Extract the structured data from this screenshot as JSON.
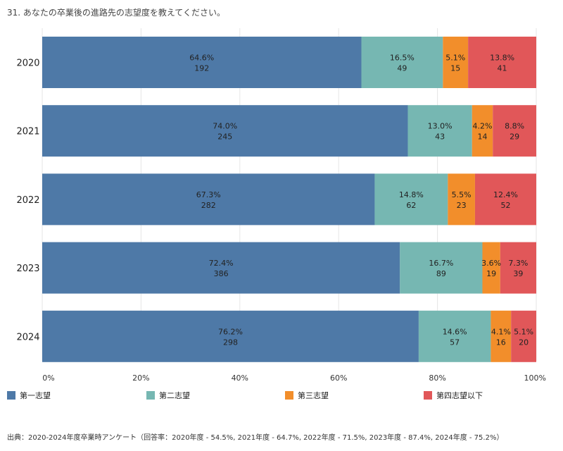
{
  "chart_data": {
    "type": "bar",
    "orientation": "horizontal",
    "stacked": true,
    "title": "31. あなたの卒業後の進路先の志望度を教えてください。",
    "source": "出典：2020-2024年度卒業時アンケート（回答率：2020年度 - 54.5%, 2021年度 - 64.7%, 2022年度 - 71.5%, 2023年度 - 87.4%, 2024年度 - 75.2%）",
    "categories": [
      "2020",
      "2021",
      "2022",
      "2023",
      "2024"
    ],
    "xlim": [
      0,
      100
    ],
    "xticks": [
      "0%",
      "20%",
      "40%",
      "60%",
      "80%",
      "100%"
    ],
    "grid": true,
    "legend_position": "bottom",
    "series": [
      {
        "name": "第一志望",
        "color": "#4e79a7",
        "values": [
          64.6,
          74.0,
          67.3,
          72.4,
          76.2
        ],
        "labels": [
          "64.6%",
          "74.0%",
          "67.3%",
          "72.4%",
          "76.2%"
        ],
        "counts": [
          "192",
          "245",
          "282",
          "386",
          "298"
        ]
      },
      {
        "name": "第二志望",
        "color": "#76b7b2",
        "values": [
          16.5,
          13.0,
          14.8,
          16.7,
          14.6
        ],
        "labels": [
          "16.5%",
          "13.0%",
          "14.8%",
          "16.7%",
          "14.6%"
        ],
        "counts": [
          "49",
          "43",
          "62",
          "89",
          "57"
        ]
      },
      {
        "name": "第三志望",
        "color": "#f28e2b",
        "values": [
          5.1,
          4.2,
          5.5,
          3.6,
          4.1
        ],
        "labels": [
          "5.1%",
          "4.2%",
          "5.5%",
          "3.6%",
          "4.1%"
        ],
        "counts": [
          "15",
          "14",
          "23",
          "19",
          "16"
        ]
      },
      {
        "name": "第四志望以下",
        "color": "#e15759",
        "values": [
          13.8,
          8.8,
          12.4,
          7.3,
          5.1
        ],
        "labels": [
          "13.8%",
          "8.8%",
          "12.4%",
          "7.3%",
          "5.1%"
        ],
        "counts": [
          "41",
          "29",
          "52",
          "39",
          "20"
        ]
      }
    ]
  }
}
